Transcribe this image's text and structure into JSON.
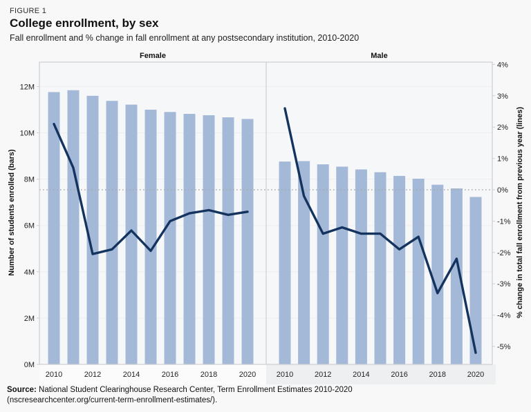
{
  "header": {
    "figure_label": "FIGURE 1",
    "title": "College enrollment, by sex",
    "subtitle": "Fall enrollment and % change in fall enrollment at any postsecondary institution, 2010-2020"
  },
  "source": {
    "prefix": "Source:",
    "line1_rest": " National Student Clearinghouse Research Center, Term Enrollment Estimates 2010-2020",
    "line2": "(nscresearchcenter.org/current-term-enrollment-estimates/)."
  },
  "left_axis": {
    "label": "Number of students enrolled (bars)",
    "tick_labels": [
      "0M",
      "2M",
      "4M",
      "6M",
      "8M",
      "10M",
      "12M"
    ],
    "tick_values": [
      0,
      2,
      4,
      6,
      8,
      10,
      12
    ]
  },
  "right_axis": {
    "label": "% change in total fall enrollment from previous year (lines)",
    "tick_labels": [
      "4%",
      "3%",
      "2%",
      "1%",
      "0%",
      "-1%",
      "-2%",
      "-3%",
      "-4%",
      "-5%"
    ],
    "tick_values": [
      4,
      3,
      2,
      1,
      0,
      -1,
      -2,
      -3,
      -4,
      -5
    ]
  },
  "x_axis": {
    "tick_labels": [
      "2010",
      "2012",
      "2014",
      "2016",
      "2018",
      "2020"
    ],
    "tick_values": [
      2010,
      2012,
      2014,
      2016,
      2018,
      2020
    ]
  },
  "colors": {
    "bar": "#a4b8d7",
    "line": "#14335e",
    "zero_line": "#a8a8a8",
    "grid": "#ededf0",
    "plot_bg": "#f6f7f9",
    "border": "#cdced3",
    "tick_text": "#222222",
    "female_bottom_strip": "#fbfbfb",
    "male_bottom_strip": "#edeff1"
  },
  "chart_data": {
    "type": "bar",
    "subtype": "dual-axis bars + line, faceted by sex",
    "title": "College enrollment, by sex",
    "x": [
      2010,
      2011,
      2012,
      2013,
      2014,
      2015,
      2016,
      2017,
      2018,
      2019,
      2020
    ],
    "panels": [
      {
        "title": "Female",
        "bars_enrollment_millions": [
          11.76,
          11.84,
          11.6,
          11.38,
          11.22,
          11.0,
          10.9,
          10.82,
          10.76,
          10.67,
          10.6
        ],
        "line_pct_change": [
          2.1,
          0.7,
          -2.05,
          -1.9,
          -1.3,
          -1.95,
          -1.0,
          -0.75,
          -0.65,
          -0.8,
          -0.7
        ]
      },
      {
        "title": "Male",
        "bars_enrollment_millions": [
          8.76,
          8.78,
          8.64,
          8.54,
          8.42,
          8.3,
          8.14,
          8.02,
          7.76,
          7.6,
          7.23
        ],
        "line_pct_change": [
          2.6,
          -0.2,
          -1.4,
          -1.2,
          -1.4,
          -1.4,
          -1.9,
          -1.5,
          -3.3,
          -2.2,
          -5.2
        ]
      }
    ],
    "left_ylim": [
      0,
      12.2
    ],
    "right_ylim": [
      -5.5,
      4.1
    ],
    "zero_reference_line": true,
    "legend": "none",
    "grid": "horizontal, subtle"
  }
}
